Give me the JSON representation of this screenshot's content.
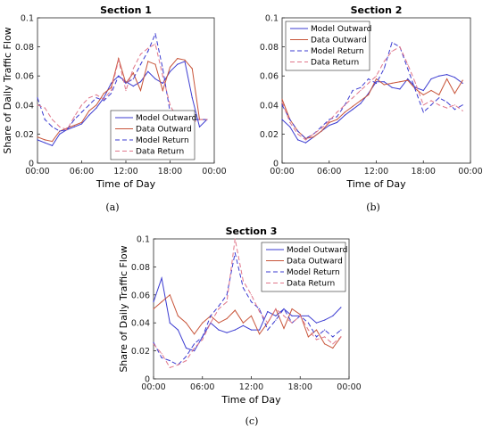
{
  "chart_data": [
    {
      "type": "line",
      "panel_label": "(a)",
      "title": "Section 1",
      "xlabel": "Time of Day",
      "ylabel": "Share of Daily Traffic Flow",
      "xlim": [
        0,
        24
      ],
      "ylim": [
        0,
        0.1
      ],
      "x_ticks": [
        "00:00",
        "06:00",
        "12:00",
        "18:00",
        "00:00"
      ],
      "y_ticks": [
        "0",
        "0.02",
        "0.04",
        "0.06",
        "0.08",
        "0.1"
      ],
      "legend_position": "lower-right",
      "x": [
        0,
        1,
        2,
        3,
        4,
        5,
        6,
        7,
        8,
        9,
        10,
        11,
        12,
        13,
        14,
        15,
        16,
        17,
        18,
        19,
        20,
        21,
        22,
        23
      ],
      "series": [
        {
          "name": "Model Outward",
          "color": "#3b3bd1",
          "dash": "solid",
          "values": [
            0.016,
            0.014,
            0.012,
            0.02,
            0.023,
            0.025,
            0.027,
            0.033,
            0.038,
            0.045,
            0.055,
            0.06,
            0.056,
            0.053,
            0.056,
            0.063,
            0.058,
            0.055,
            0.063,
            0.068,
            0.07,
            0.045,
            0.025,
            0.03
          ]
        },
        {
          "name": "Data Outward",
          "color": "#c8553a",
          "dash": "solid",
          "values": [
            0.018,
            0.016,
            0.015,
            0.022,
            0.024,
            0.026,
            0.028,
            0.036,
            0.04,
            0.048,
            0.052,
            0.072,
            0.055,
            0.062,
            0.05,
            0.07,
            0.068,
            0.05,
            0.066,
            0.072,
            0.071,
            0.065,
            0.03,
            0.03
          ]
        },
        {
          "name": "Model Return",
          "color": "#3b3bd1",
          "dash": "dashed",
          "values": [
            0.045,
            0.03,
            0.025,
            0.022,
            0.023,
            0.03,
            0.035,
            0.04,
            0.045,
            0.043,
            0.048,
            0.06,
            0.055,
            0.058,
            0.068,
            0.077,
            0.089,
            0.065,
            0.035,
            0.031,
            0.03,
            0.03,
            0.03,
            0.03
          ]
        },
        {
          "name": "Data Return",
          "color": "#e0768a",
          "dash": "dashed",
          "values": [
            0.04,
            0.038,
            0.03,
            0.025,
            0.023,
            0.032,
            0.04,
            0.045,
            0.047,
            0.044,
            0.05,
            0.071,
            0.05,
            0.065,
            0.075,
            0.079,
            0.082,
            0.06,
            0.04,
            0.03,
            0.03,
            0.028,
            0.03,
            0.03
          ]
        }
      ]
    },
    {
      "type": "line",
      "panel_label": "(b)",
      "title": "Section 2",
      "xlabel": "Time of Day",
      "ylabel": "",
      "xlim": [
        0,
        24
      ],
      "ylim": [
        0,
        0.1
      ],
      "x_ticks": [
        "00:00",
        "06:00",
        "12:00",
        "18:00",
        "00:00"
      ],
      "y_ticks": [
        "0",
        "0.02",
        "0.04",
        "0.06",
        "0.08",
        "0.1"
      ],
      "legend_position": "top-left",
      "x": [
        0,
        1,
        2,
        3,
        4,
        5,
        6,
        7,
        8,
        9,
        10,
        11,
        12,
        13,
        14,
        15,
        16,
        17,
        18,
        19,
        20,
        21,
        22,
        23
      ],
      "series": [
        {
          "name": "Model Outward",
          "color": "#3b3bd1",
          "dash": "solid",
          "values": [
            0.03,
            0.025,
            0.016,
            0.014,
            0.018,
            0.022,
            0.026,
            0.028,
            0.033,
            0.037,
            0.041,
            0.048,
            0.056,
            0.056,
            0.052,
            0.051,
            0.058,
            0.052,
            0.05,
            0.058,
            0.06,
            0.061,
            0.059,
            0.055
          ]
        },
        {
          "name": "Data Outward",
          "color": "#c8553a",
          "dash": "solid",
          "values": [
            0.044,
            0.03,
            0.022,
            0.017,
            0.018,
            0.022,
            0.028,
            0.03,
            0.035,
            0.039,
            0.043,
            0.047,
            0.058,
            0.054,
            0.055,
            0.056,
            0.057,
            0.051,
            0.047,
            0.05,
            0.047,
            0.058,
            0.048,
            0.057
          ]
        },
        {
          "name": "Model Return",
          "color": "#3b3bd1",
          "dash": "dashed",
          "values": [
            0.04,
            0.03,
            0.022,
            0.017,
            0.02,
            0.025,
            0.03,
            0.032,
            0.04,
            0.05,
            0.052,
            0.058,
            0.055,
            0.065,
            0.083,
            0.08,
            0.065,
            0.05,
            0.035,
            0.04,
            0.045,
            0.042,
            0.037,
            0.04
          ]
        },
        {
          "name": "Data Return",
          "color": "#e0768a",
          "dash": "dashed",
          "values": [
            0.042,
            0.028,
            0.02,
            0.016,
            0.02,
            0.024,
            0.029,
            0.035,
            0.04,
            0.045,
            0.05,
            0.055,
            0.06,
            0.07,
            0.077,
            0.08,
            0.068,
            0.055,
            0.04,
            0.043,
            0.04,
            0.038,
            0.04,
            0.036
          ]
        }
      ]
    },
    {
      "type": "line",
      "panel_label": "(c)",
      "title": "Section 3",
      "xlabel": "Time of Day",
      "ylabel": "Share of Daily Traffic Flow",
      "xlim": [
        0,
        24
      ],
      "ylim": [
        0,
        0.1
      ],
      "x_ticks": [
        "00:00",
        "06:00",
        "12:00",
        "18:00",
        "00:00"
      ],
      "y_ticks": [
        "0",
        "0.02",
        "0.04",
        "0.06",
        "0.08",
        "0.1"
      ],
      "legend_position": "top-right",
      "x": [
        0,
        1,
        2,
        3,
        4,
        5,
        6,
        7,
        8,
        9,
        10,
        11,
        12,
        13,
        14,
        15,
        16,
        17,
        18,
        19,
        20,
        21,
        22,
        23
      ],
      "series": [
        {
          "name": "Model Outward",
          "color": "#3b3bd1",
          "dash": "solid",
          "values": [
            0.055,
            0.072,
            0.04,
            0.035,
            0.022,
            0.02,
            0.03,
            0.04,
            0.035,
            0.033,
            0.035,
            0.038,
            0.035,
            0.035,
            0.048,
            0.045,
            0.05,
            0.045,
            0.045,
            0.045,
            0.04,
            0.042,
            0.045,
            0.051
          ]
        },
        {
          "name": "Data Outward",
          "color": "#c8553a",
          "dash": "solid",
          "values": [
            0.05,
            0.055,
            0.06,
            0.045,
            0.04,
            0.032,
            0.04,
            0.045,
            0.04,
            0.043,
            0.049,
            0.04,
            0.045,
            0.032,
            0.04,
            0.05,
            0.036,
            0.05,
            0.046,
            0.03,
            0.035,
            0.025,
            0.022,
            0.03
          ]
        },
        {
          "name": "Model Return",
          "color": "#3b3bd1",
          "dash": "dashed",
          "values": [
            0.026,
            0.015,
            0.013,
            0.01,
            0.016,
            0.025,
            0.03,
            0.045,
            0.052,
            0.06,
            0.09,
            0.065,
            0.055,
            0.05,
            0.035,
            0.042,
            0.05,
            0.04,
            0.045,
            0.04,
            0.03,
            0.035,
            0.03,
            0.035
          ]
        },
        {
          "name": "Data Return",
          "color": "#e0768a",
          "dash": "dashed",
          "values": [
            0.025,
            0.018,
            0.008,
            0.01,
            0.013,
            0.022,
            0.028,
            0.04,
            0.05,
            0.055,
            0.1,
            0.07,
            0.06,
            0.048,
            0.04,
            0.05,
            0.045,
            0.04,
            0.045,
            0.035,
            0.028,
            0.03,
            0.025,
            0.03
          ]
        }
      ]
    }
  ]
}
